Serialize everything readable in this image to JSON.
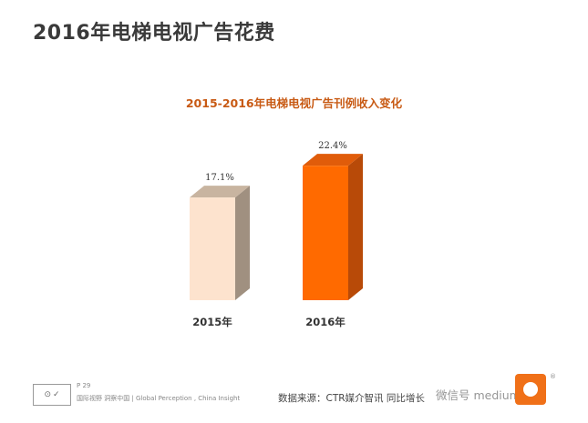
{
  "page": {
    "title": "2016年电梯电视广告花费"
  },
  "chart_data": {
    "type": "bar",
    "title": "2015-2016年电梯电视广告刊例收入变化",
    "categories": [
      "2015年",
      "2016年"
    ],
    "values": [
      17.1,
      22.4
    ],
    "value_labels": [
      "17.1%",
      "22.4%"
    ],
    "ylim": [
      0,
      25
    ],
    "grid": false,
    "colors": {
      "bar_2015_front": "#fde3ce",
      "bar_2015_side": "#a09080",
      "bar_2015_top": "#c8b4a0",
      "bar_2016_front": "#ff6a00",
      "bar_2016_side": "#b84a08",
      "bar_2016_top": "#e05c0a"
    }
  },
  "footer": {
    "page_number": "P 29",
    "tagline": "国际视野 洞察中国 | Global Perception , China Insight",
    "source": "数据来源：CTR媒介智讯   同比增长",
    "watermark": "微信号 medium",
    "logo_icon": "brand-seal-icon",
    "ctr_logo_icon": "ctr-logo-icon",
    "ctr_registered": "®"
  }
}
